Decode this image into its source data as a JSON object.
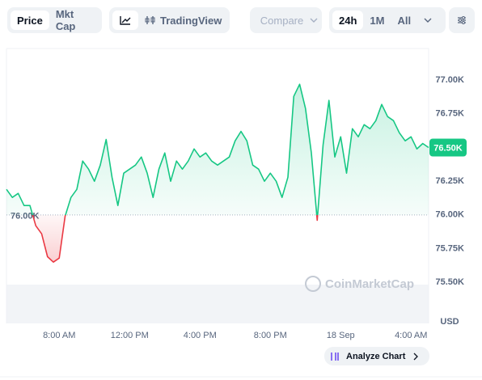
{
  "ui": {
    "price": "Price",
    "mkt_cap": "Mkt Cap",
    "tradingview": "TradingView",
    "compare": "Compare",
    "range_24h": "24h",
    "range_1m": "1M",
    "range_all": "All",
    "analyze": "Analyze Chart",
    "watermark": "CoinMarketCap",
    "currency": "USD"
  },
  "chart_data": {
    "type": "line",
    "categories": [
      null,
      null,
      null,
      null,
      null,
      null,
      null,
      null,
      null,
      "8:00 AM",
      null,
      null,
      null,
      null,
      null,
      null,
      null,
      null,
      null,
      null,
      null,
      "12:00 PM",
      null,
      null,
      null,
      null,
      null,
      null,
      null,
      null,
      null,
      null,
      null,
      "4:00 PM",
      null,
      null,
      null,
      null,
      null,
      null,
      null,
      null,
      null,
      null,
      null,
      "8:00 PM",
      null,
      null,
      null,
      null,
      null,
      null,
      null,
      null,
      null,
      null,
      null,
      "18 Sep",
      null,
      null,
      null,
      null,
      null,
      null,
      null,
      null,
      null,
      null,
      null,
      "4:00 AM",
      null,
      null,
      null
    ],
    "series": [
      {
        "color": "#16c784",
        "below_color": "#ea3943",
        "values": [
          76190,
          76130,
          76160,
          76070,
          76070,
          75920,
          75860,
          75690,
          75650,
          75680,
          75990,
          76130,
          76190,
          76400,
          76340,
          76250,
          76370,
          76560,
          76280,
          76070,
          76310,
          76340,
          76370,
          76430,
          76310,
          76130,
          76340,
          76460,
          76250,
          76400,
          76340,
          76400,
          76490,
          76430,
          76460,
          76400,
          76370,
          76400,
          76430,
          76550,
          76620,
          76550,
          76370,
          76340,
          76250,
          76310,
          76250,
          76130,
          76280,
          76880,
          76970,
          76790,
          76460,
          75960,
          76520,
          76850,
          76430,
          76580,
          76310,
          76640,
          76580,
          76670,
          76640,
          76700,
          76820,
          76730,
          76700,
          76610,
          76550,
          76580,
          76490,
          76530,
          76500
        ],
        "value_labels": [
          null,
          null,
          null,
          null,
          null,
          null,
          null,
          null,
          null,
          null,
          null,
          null,
          null,
          null,
          null,
          null,
          null,
          null,
          null,
          null,
          null,
          null,
          null,
          null,
          null,
          null,
          null,
          null,
          null,
          null,
          null,
          null,
          null,
          null,
          null,
          null,
          null,
          null,
          null,
          null,
          null,
          null,
          null,
          null,
          null,
          null,
          null,
          null,
          null,
          null,
          null,
          null,
          null,
          null,
          null,
          null,
          null,
          null,
          null,
          null,
          null,
          null,
          null,
          null,
          null,
          null,
          null,
          null,
          null,
          null,
          null,
          null,
          "76.50K"
        ]
      }
    ],
    "baseline": {
      "value": 76000,
      "label": "76.00K"
    },
    "ylim": [
      75195,
      77235
    ],
    "yticks": [
      {
        "value": 75500,
        "label": "75.50K"
      },
      {
        "value": 75750,
        "label": "75.75K"
      },
      {
        "value": 76000,
        "label": "76.00K"
      },
      {
        "value": 76250,
        "label": "76.25K"
      },
      {
        "value": 76500,
        "label": "76.50K"
      },
      {
        "value": 76750,
        "label": "76.75K"
      },
      {
        "value": 77000,
        "label": "77.00K"
      }
    ],
    "grid": false
  }
}
